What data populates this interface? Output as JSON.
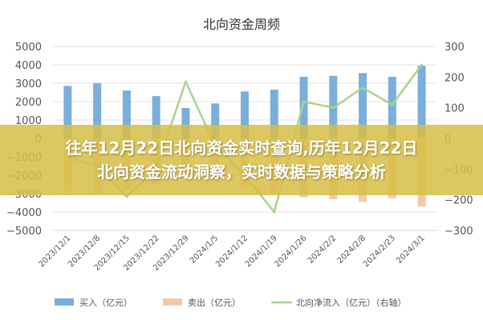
{
  "banner": {
    "line1": "往年12月22日北向资金实时查询,历年12月22日",
    "line2": "北向资金流动洞察，实时数据与策略分析"
  },
  "chart_data": {
    "type": "bar",
    "title": "北向资金周频",
    "categories": [
      "2023/12/1",
      "2023/12/8",
      "2023/12/15",
      "2023/12/22",
      "2023/12/29",
      "2024/1/5",
      "2024/1/12",
      "2024/1/19",
      "2024/1/26",
      "2024/2/2",
      "2024/2/8",
      "2024/2/23",
      "2024/3/1"
    ],
    "series": [
      {
        "name": "买入（亿元）",
        "kind": "bar",
        "axis": "left",
        "color": "#7aaedb",
        "values": [
          2850,
          3000,
          2600,
          2300,
          1650,
          1900,
          2550,
          2650,
          3350,
          3400,
          3550,
          3350,
          3950
        ]
      },
      {
        "name": "卖出（亿元）",
        "kind": "bar",
        "axis": "left",
        "color": "#f5c9a6",
        "values": [
          -2900,
          -3050,
          -2800,
          -2500,
          -2000,
          -2200,
          -2700,
          -2950,
          -3200,
          -3300,
          -3450,
          -3250,
          -3700
        ]
      },
      {
        "name": "北向净流入（亿元）（右轴）",
        "kind": "line",
        "axis": "right",
        "color": "#a8d38c",
        "values": [
          -60,
          -90,
          -190,
          -100,
          185,
          -25,
          -120,
          -240,
          120,
          100,
          165,
          110,
          240
        ]
      }
    ],
    "ylim_left": [
      -5000,
      5000
    ],
    "yticks_left": [
      "5000",
      "4000",
      "3000",
      "2000",
      "1000",
      "0",
      "−1000",
      "−2000",
      "−3000",
      "−4000",
      "−5000"
    ],
    "ylim_right": [
      -300,
      300
    ],
    "yticks_right": [
      "300",
      "200",
      "100",
      "0",
      "−100",
      "−200",
      "−300"
    ],
    "grid": true,
    "legend_position": "bottom"
  }
}
